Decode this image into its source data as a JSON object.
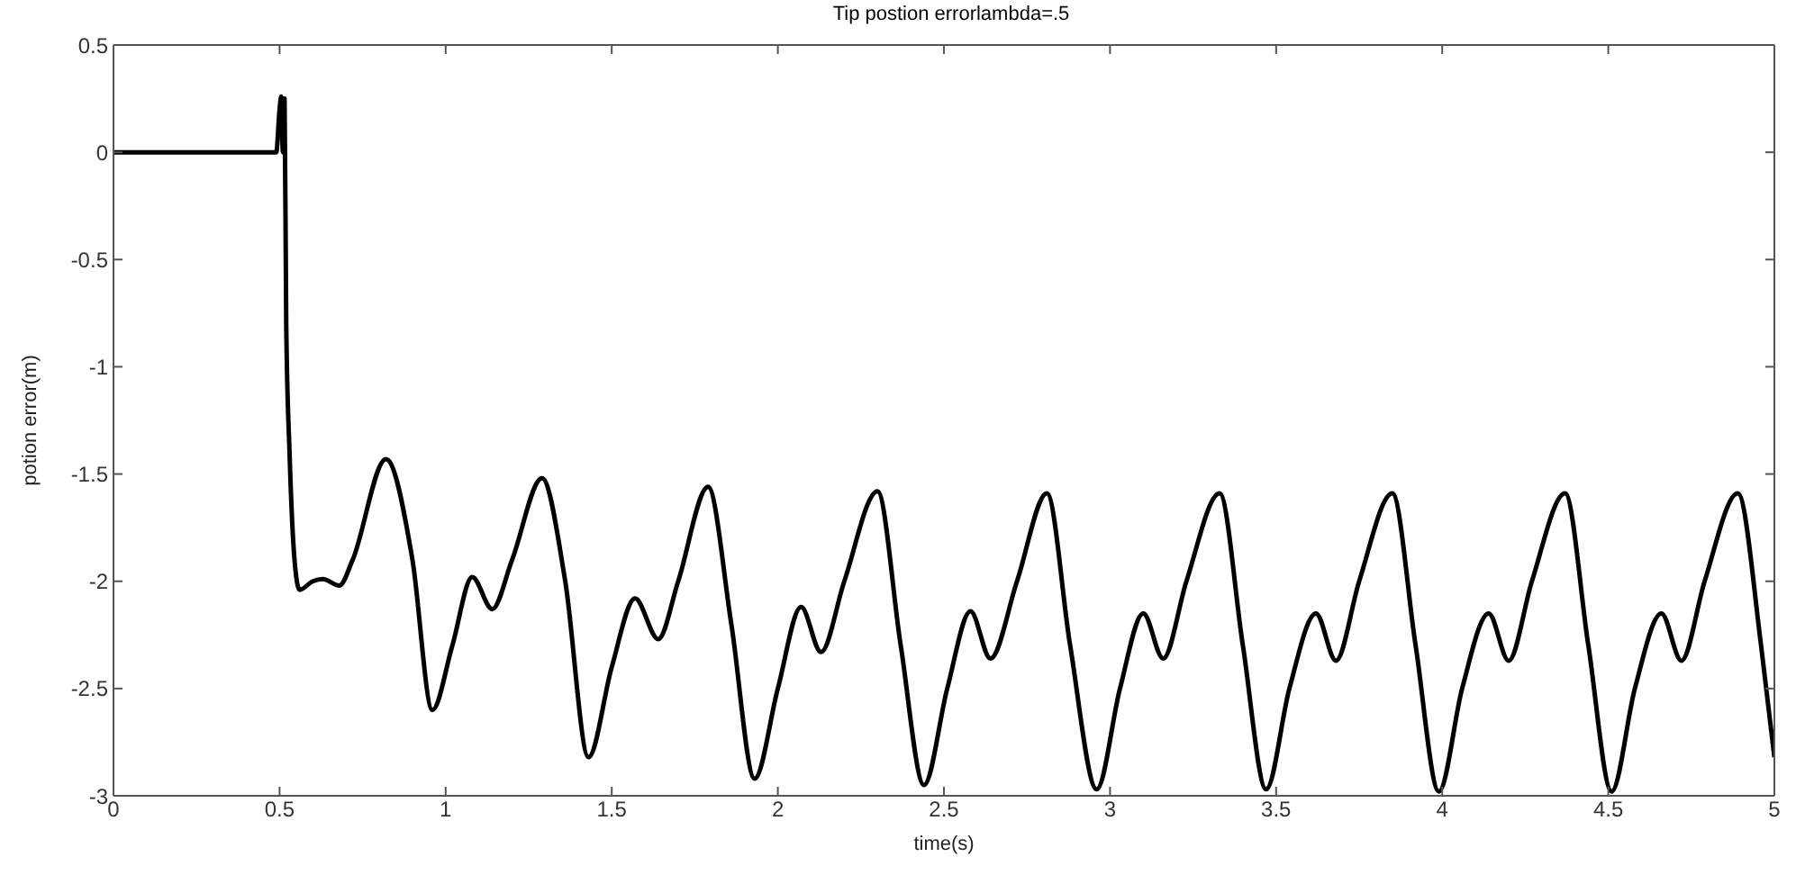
{
  "chart_data": {
    "type": "line",
    "title": "Tip postion errorlambda=.5",
    "xlabel": "time(s)",
    "ylabel": "potion error(m)",
    "xlim": [
      0,
      5
    ],
    "xticks": [
      0,
      0.5,
      1,
      1.5,
      2,
      2.5,
      3,
      3.5,
      4,
      4.5,
      5
    ],
    "ylim": [
      -3,
      0.5
    ],
    "yticks": [
      0.5,
      0,
      -0.5,
      -1,
      -1.5,
      -2,
      -2.5,
      -3
    ],
    "grid": false,
    "legend": false,
    "marker": "none",
    "line_style": "solid",
    "x": [
      0,
      0.49,
      0.5,
      0.505,
      0.51,
      0.515,
      0.52,
      0.53,
      0.545,
      0.56,
      0.6,
      0.63,
      0.68,
      0.72,
      0.82,
      0.9,
      0.96,
      1.02,
      1.08,
      1.14,
      1.2,
      1.29,
      1.36,
      1.43,
      1.5,
      1.57,
      1.64,
      1.7,
      1.79,
      1.86,
      1.93,
      2.0,
      2.07,
      2.13,
      2.2,
      2.3,
      2.37,
      2.44,
      2.51,
      2.58,
      2.64,
      2.72,
      2.81,
      2.88,
      2.96,
      3.03,
      3.1,
      3.16,
      3.23,
      3.33,
      3.4,
      3.47,
      3.54,
      3.62,
      3.68,
      3.75,
      3.85,
      3.92,
      3.99,
      4.06,
      4.14,
      4.2,
      4.27,
      4.37,
      4.44,
      4.51,
      4.58,
      4.66,
      4.72,
      4.79,
      4.89,
      4.96,
      5.0
    ],
    "series": [
      {
        "color": "#000000",
        "values": [
          0,
          0,
          0.2,
          0.26,
          0,
          0.25,
          -0.8,
          -1.4,
          -1.9,
          -2.04,
          -2.0,
          -1.99,
          -2.02,
          -1.9,
          -1.43,
          -1.9,
          -2.6,
          -2.3,
          -1.98,
          -2.13,
          -1.9,
          -1.52,
          -2.0,
          -2.82,
          -2.4,
          -2.08,
          -2.27,
          -2.0,
          -1.56,
          -2.2,
          -2.92,
          -2.5,
          -2.12,
          -2.33,
          -2.0,
          -1.58,
          -2.3,
          -2.95,
          -2.5,
          -2.14,
          -2.36,
          -2.0,
          -1.59,
          -2.3,
          -2.97,
          -2.5,
          -2.15,
          -2.36,
          -2.0,
          -1.59,
          -2.3,
          -2.97,
          -2.5,
          -2.15,
          -2.37,
          -2.0,
          -1.59,
          -2.3,
          -2.98,
          -2.5,
          -2.15,
          -2.37,
          -2.0,
          -1.59,
          -2.3,
          -2.98,
          -2.5,
          -2.15,
          -2.37,
          -2.0,
          -1.59,
          -2.3,
          -2.82
        ]
      }
    ]
  }
}
